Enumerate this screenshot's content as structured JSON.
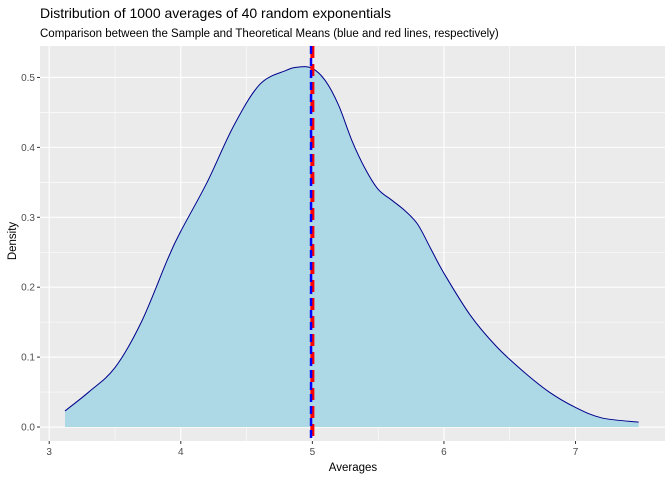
{
  "chart_data": {
    "type": "area",
    "title": "Distribution of 1000 averages of 40 random exponentials",
    "subtitle": "Comparison between the Sample and Theoretical Means (blue and red lines, respectively)",
    "xlabel": "Averages",
    "ylabel": "Density",
    "xlim": [
      2.93,
      7.68
    ],
    "ylim": [
      -0.02,
      0.545
    ],
    "x_ticks": [
      "3",
      "4",
      "5",
      "6",
      "7"
    ],
    "y_ticks": [
      "0.0",
      "0.1",
      "0.2",
      "0.3",
      "0.4",
      "0.5"
    ],
    "x_tick_values": [
      3,
      4,
      5,
      6,
      7
    ],
    "y_tick_values": [
      0.0,
      0.1,
      0.2,
      0.3,
      0.4,
      0.5
    ],
    "grid": true,
    "background": "#ebebeb",
    "fill_color": "#add8e6",
    "line_color": "#00008b",
    "series": [
      {
        "x": [
          3.12,
          3.3,
          3.5,
          3.7,
          3.9,
          4.0,
          4.2,
          4.4,
          4.6,
          4.8,
          4.9,
          5.0,
          5.1,
          5.2,
          5.3,
          5.4,
          5.5,
          5.6,
          5.7,
          5.8,
          5.9,
          6.0,
          6.2,
          6.4,
          6.6,
          6.8,
          7.0,
          7.2,
          7.48
        ],
        "y": [
          0.023,
          0.05,
          0.085,
          0.15,
          0.24,
          0.28,
          0.35,
          0.43,
          0.49,
          0.51,
          0.515,
          0.513,
          0.495,
          0.46,
          0.41,
          0.37,
          0.34,
          0.325,
          0.31,
          0.29,
          0.255,
          0.22,
          0.16,
          0.115,
          0.08,
          0.05,
          0.028,
          0.013,
          0.007
        ]
      }
    ],
    "vlines": [
      {
        "x": 5.0,
        "color": "#ff0000",
        "style": "dashed"
      },
      {
        "x": 4.99,
        "color": "#0000ff",
        "style": "dashed"
      }
    ]
  }
}
